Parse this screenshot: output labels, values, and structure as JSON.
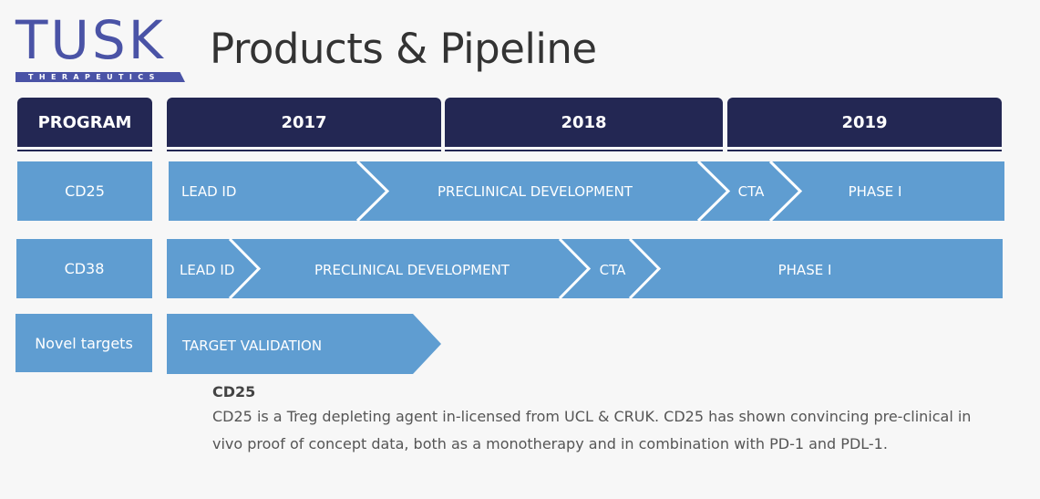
{
  "logo": {
    "main": "TUSK",
    "sub": "THERAPEUTICS"
  },
  "title": "Products & Pipeline",
  "header": {
    "program": "PROGRAM",
    "years": [
      "2017",
      "2018",
      "2019"
    ]
  },
  "colors": {
    "header_bg": "#232753",
    "bar": "#5f9dd1",
    "logo": "#4a53a6",
    "chevron": "#ffffff"
  },
  "programs": [
    {
      "label": "CD25",
      "stages": [
        "LEAD ID",
        "PRECLINICAL DEVELOPMENT",
        "CTA",
        "PHASE I"
      ]
    },
    {
      "label": "CD38",
      "stages": [
        "LEAD ID",
        "PRECLINICAL DEVELOPMENT",
        "CTA",
        "PHASE I"
      ]
    },
    {
      "label": "Novel targets",
      "stages": [
        "TARGET VALIDATION"
      ]
    }
  ],
  "description": {
    "title": "CD25",
    "body": "CD25 is a Treg depleting agent in-licensed from UCL & CRUK. CD25 has shown convincing pre-clinical in vivo proof of concept data, both as a monotherapy and in combination with PD-1 and PDL-1."
  }
}
